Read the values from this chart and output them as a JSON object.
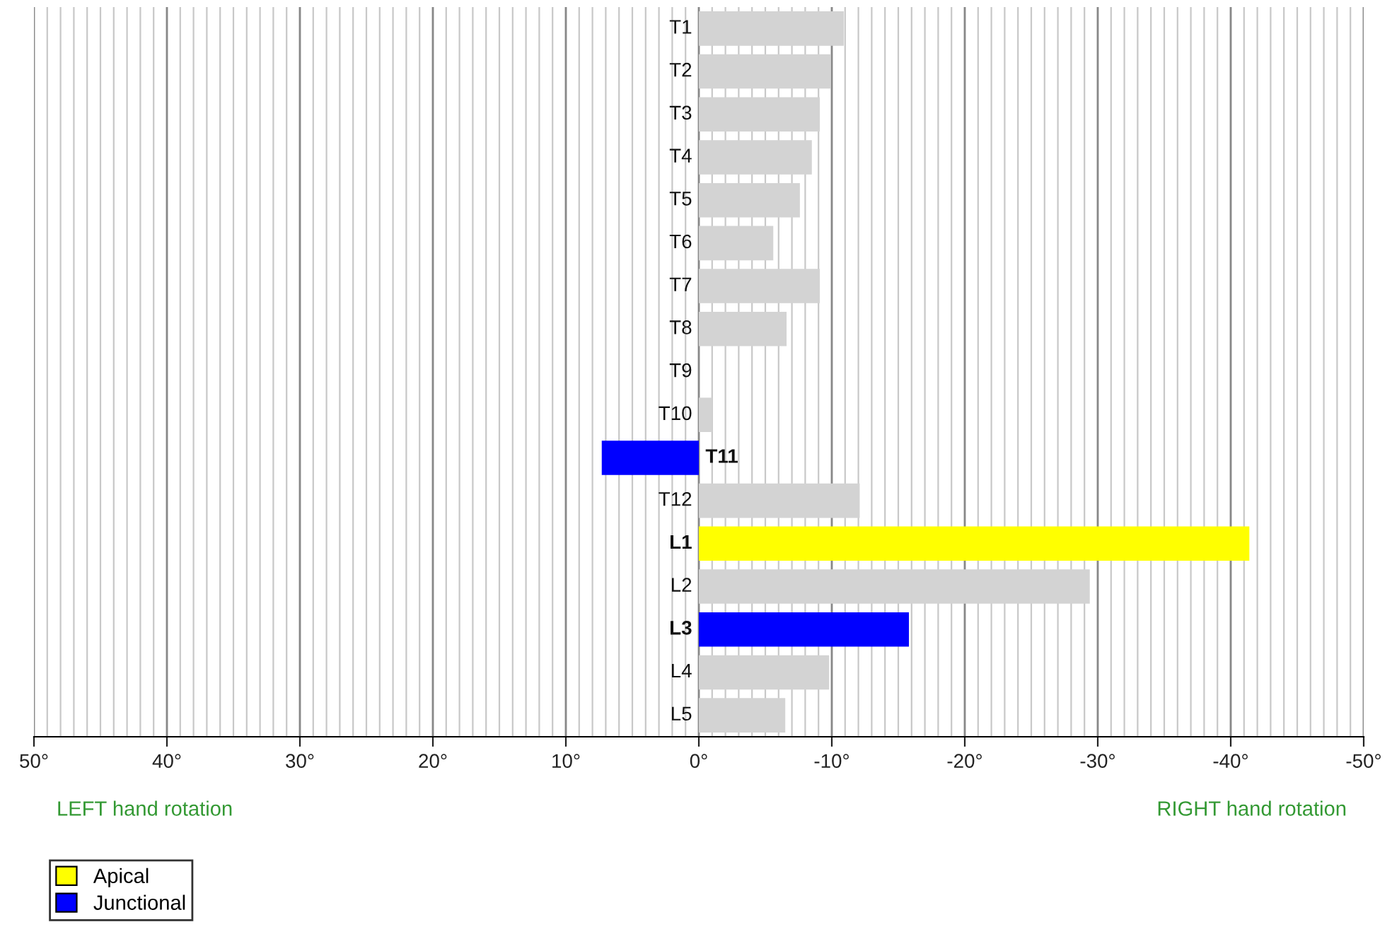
{
  "chart_data": {
    "type": "bar",
    "orientation": "horizontal",
    "categories": [
      "T1",
      "T2",
      "T3",
      "T4",
      "T5",
      "T6",
      "T7",
      "T8",
      "T9",
      "T10",
      "T11",
      "T12",
      "L1",
      "L2",
      "L3",
      "L4",
      "L5"
    ],
    "series": [
      {
        "name": "Apical",
        "color": "#ffff00",
        "values": [
          null,
          null,
          null,
          null,
          null,
          null,
          null,
          null,
          null,
          null,
          null,
          null,
          -41.4,
          null,
          null,
          null,
          null
        ]
      },
      {
        "name": "Junctional",
        "color": "#0000ff",
        "values": [
          null,
          null,
          null,
          null,
          null,
          null,
          null,
          null,
          null,
          null,
          7.3,
          null,
          null,
          null,
          -15.8,
          null,
          null
        ]
      },
      {
        "color": "#d3d3d3",
        "values": [
          -10.9,
          -9.9,
          -9.1,
          -8.5,
          -7.6,
          -5.6,
          -9.1,
          -6.6,
          0,
          -1,
          null,
          -12.1,
          null,
          -29.4,
          null,
          -9.8,
          -6.5
        ]
      }
    ],
    "xlim": [
      50,
      -50
    ],
    "xticks": [
      {
        "value": 50,
        "label": "50°"
      },
      {
        "value": 40,
        "label": "40°"
      },
      {
        "value": 30,
        "label": "30°"
      },
      {
        "value": 20,
        "label": "20°"
      },
      {
        "value": 10,
        "label": "10°"
      },
      {
        "value": 0,
        "label": "0°"
      },
      {
        "value": -10,
        "label": "-10°"
      },
      {
        "value": -20,
        "label": "-20°"
      },
      {
        "value": -30,
        "label": "-30°"
      },
      {
        "value": -40,
        "label": "-40°"
      },
      {
        "value": -50,
        "label": "-50°"
      }
    ],
    "grid": "x",
    "legend": "bottom left",
    "annotations": [
      "LEFT hand rotation",
      "RIGHT hand rotation"
    ]
  }
}
